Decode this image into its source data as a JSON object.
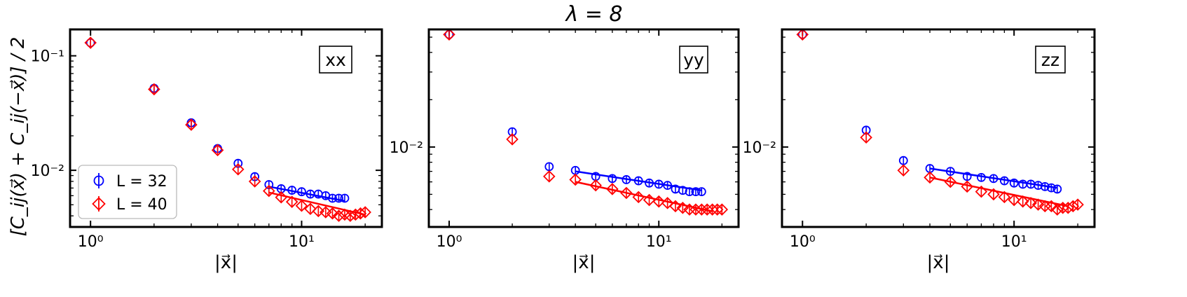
{
  "figure_title": "λ = 8",
  "ylabel": "[C_ij(x⃗) + C_ij(−x⃗)] / 2",
  "legend": [
    {
      "label": "L = 32",
      "color": "#0000ff",
      "marker": "circle"
    },
    {
      "label": "L = 40",
      "color": "#ff0000",
      "marker": "diamond"
    }
  ],
  "colors": {
    "series_L32": "#0000ff",
    "series_L40": "#ff0000"
  },
  "chart_data": [
    {
      "type": "scatter",
      "panel_label": "xx",
      "xlabel": "|x⃗|",
      "xscale": "log",
      "yscale": "log",
      "xlim": [
        0.8,
        24
      ],
      "ylim": [
        0.0032,
        0.17
      ],
      "xticks": [
        {
          "value": 1,
          "label": "10⁰"
        },
        {
          "value": 10,
          "label": "10¹"
        }
      ],
      "yticks": [
        {
          "value": 0.01,
          "label": "10⁻²"
        },
        {
          "value": 0.1,
          "label": "10⁻¹"
        }
      ],
      "legend_position": "lower-left",
      "series": [
        {
          "name": "L = 32",
          "x": [
            1,
            2,
            3,
            4,
            5,
            6,
            7,
            8,
            9,
            10,
            11,
            12,
            13,
            14,
            15,
            16
          ],
          "y": [
            0.13,
            0.052,
            0.026,
            0.0155,
            0.0115,
            0.0088,
            0.0075,
            0.0069,
            0.0067,
            0.0065,
            0.0062,
            0.0062,
            0.006,
            0.0057,
            0.0057,
            0.0057
          ],
          "fit": {
            "x": [
              7,
              16
            ],
            "y": [
              0.0072,
              0.0054
            ]
          }
        },
        {
          "name": "L = 40",
          "x": [
            1,
            2,
            3,
            4,
            5,
            6,
            7,
            8,
            9,
            10,
            11,
            12,
            13,
            14,
            15,
            16,
            17,
            18,
            19,
            20
          ],
          "y": [
            0.13,
            0.051,
            0.025,
            0.015,
            0.0102,
            0.008,
            0.0066,
            0.0058,
            0.0053,
            0.0049,
            0.0046,
            0.0044,
            0.0043,
            0.0042,
            0.004,
            0.0041,
            0.004,
            0.0041,
            0.0042,
            0.0043
          ],
          "fit": {
            "x": [
              7,
              20
            ],
            "y": [
              0.0064,
              0.0041
            ]
          }
        }
      ]
    },
    {
      "type": "scatter",
      "panel_label": "yy",
      "xlabel": "|x⃗|",
      "xscale": "log",
      "yscale": "log",
      "xlim": [
        0.8,
        24
      ],
      "ylim": [
        0.0031,
        0.056
      ],
      "xticks": [
        {
          "value": 1,
          "label": "10⁰"
        },
        {
          "value": 10,
          "label": "10¹"
        }
      ],
      "yticks": [
        {
          "value": 0.01,
          "label": "10⁻²"
        }
      ],
      "series": [
        {
          "name": "L = 32",
          "x": [
            1,
            2,
            3,
            4,
            5,
            6,
            7,
            8,
            9,
            10,
            11,
            12,
            13,
            14,
            15,
            16
          ],
          "y": [
            0.052,
            0.0125,
            0.0075,
            0.0071,
            0.0065,
            0.0063,
            0.0062,
            0.0061,
            0.0059,
            0.0058,
            0.0057,
            0.0054,
            0.0053,
            0.0052,
            0.0052,
            0.0052
          ],
          "fit": {
            "x": [
              4,
              16
            ],
            "y": [
              0.007,
              0.0053
            ]
          }
        },
        {
          "name": "L = 40",
          "x": [
            1,
            2,
            3,
            4,
            5,
            6,
            7,
            8,
            9,
            10,
            11,
            12,
            13,
            14,
            15,
            16,
            17,
            18,
            19,
            20
          ],
          "y": [
            0.052,
            0.0112,
            0.0065,
            0.0062,
            0.0057,
            0.0054,
            0.0051,
            0.0048,
            0.0046,
            0.0045,
            0.0044,
            0.0042,
            0.0041,
            0.004,
            0.004,
            0.004,
            0.004,
            0.004,
            0.004,
            0.004
          ],
          "fit": {
            "x": [
              4,
              18
            ],
            "y": [
              0.006,
              0.0039
            ]
          }
        }
      ]
    },
    {
      "type": "scatter",
      "panel_label": "zz",
      "xlabel": "|x⃗|",
      "xscale": "log",
      "yscale": "log",
      "xlim": [
        0.8,
        24
      ],
      "ylim": [
        0.0031,
        0.056
      ],
      "xticks": [
        {
          "value": 1,
          "label": "10⁰"
        },
        {
          "value": 10,
          "label": "10¹"
        }
      ],
      "yticks": [
        {
          "value": 0.01,
          "label": "10⁻²"
        }
      ],
      "series": [
        {
          "name": "L = 32",
          "x": [
            1,
            2,
            3,
            4,
            5,
            6,
            7,
            8,
            9,
            10,
            11,
            12,
            13,
            14,
            15,
            16
          ],
          "y": [
            0.052,
            0.0128,
            0.0082,
            0.0073,
            0.007,
            0.0065,
            0.0064,
            0.0063,
            0.0061,
            0.0059,
            0.0058,
            0.0058,
            0.0057,
            0.0056,
            0.0055,
            0.0054
          ],
          "fit": {
            "x": [
              4,
              16
            ],
            "y": [
              0.0073,
              0.0055
            ]
          }
        },
        {
          "name": "L = 40",
          "x": [
            1,
            2,
            3,
            4,
            5,
            6,
            7,
            8,
            9,
            10,
            11,
            12,
            13,
            14,
            15,
            16,
            17,
            18,
            19,
            20
          ],
          "y": [
            0.052,
            0.0115,
            0.0071,
            0.0064,
            0.006,
            0.0056,
            0.0052,
            0.005,
            0.0048,
            0.0046,
            0.0045,
            0.0044,
            0.0043,
            0.0042,
            0.0042,
            0.004,
            0.0041,
            0.0041,
            0.0042,
            0.0043
          ],
          "fit": {
            "x": [
              4,
              18
            ],
            "y": [
              0.0064,
              0.0042
            ]
          }
        }
      ]
    }
  ]
}
